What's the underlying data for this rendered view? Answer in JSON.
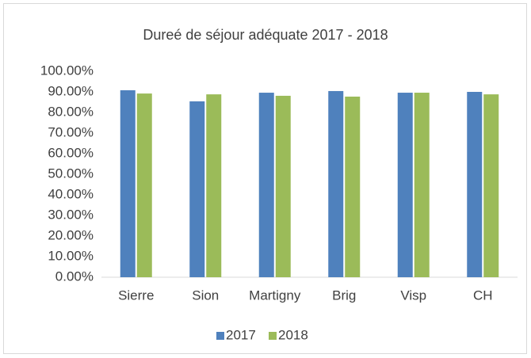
{
  "chart_data": {
    "type": "bar",
    "title": "Dureé de séjour adéquate 2017 - 2018",
    "categories": [
      "Sierre",
      "Sion",
      "Martigny",
      "Brig",
      "Visp",
      "CH"
    ],
    "series": [
      {
        "name": "2017",
        "color": "#4f81bd",
        "values": [
          90.8,
          85.4,
          89.6,
          90.4,
          89.6,
          90.0
        ]
      },
      {
        "name": "2018",
        "color": "#9bbb59",
        "values": [
          89.2,
          88.8,
          88.1,
          87.7,
          89.6,
          88.8
        ]
      }
    ],
    "ylim": [
      0,
      100
    ],
    "yticks": [
      {
        "value": 0,
        "label": "0.00%"
      },
      {
        "value": 10,
        "label": "10.00%"
      },
      {
        "value": 20,
        "label": "20.00%"
      },
      {
        "value": 30,
        "label": "30.00%"
      },
      {
        "value": 40,
        "label": "40.00%"
      },
      {
        "value": 50,
        "label": "50.00%"
      },
      {
        "value": 60,
        "label": "60.00%"
      },
      {
        "value": 70,
        "label": "70.00%"
      },
      {
        "value": 80,
        "label": "80.00%"
      },
      {
        "value": 90,
        "label": "90.00%"
      },
      {
        "value": 100,
        "label": "100.00%"
      }
    ],
    "grid": false,
    "legend": "bottom"
  }
}
